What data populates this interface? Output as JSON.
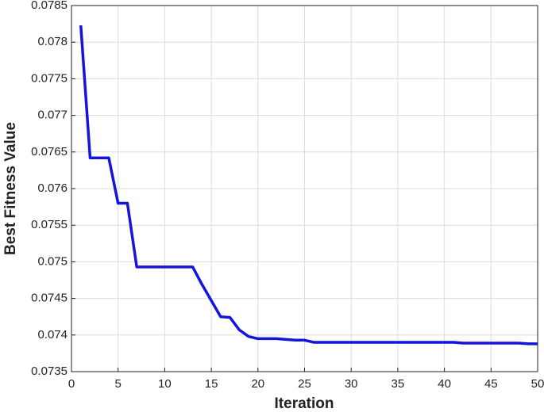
{
  "chart_data": {
    "type": "line",
    "x_label": "Iteration",
    "y_label": "Best Fitness Value",
    "x": [
      1,
      2,
      3,
      4,
      5,
      6,
      7,
      8,
      9,
      10,
      11,
      12,
      13,
      14,
      15,
      16,
      17,
      18,
      19,
      20,
      21,
      22,
      23,
      24,
      25,
      26,
      27,
      28,
      29,
      30,
      31,
      32,
      33,
      34,
      35,
      36,
      37,
      38,
      39,
      40,
      41,
      42,
      43,
      44,
      45,
      46,
      47,
      48,
      49,
      50
    ],
    "series": [
      {
        "name": "Best Fitness",
        "color": "#1414dc",
        "values": [
          0.07823,
          0.07642,
          0.07642,
          0.07642,
          0.0758,
          0.0758,
          0.07493,
          0.07493,
          0.07493,
          0.07493,
          0.07493,
          0.07493,
          0.07493,
          0.07469,
          0.07447,
          0.07425,
          0.07424,
          0.07407,
          0.07398,
          0.07395,
          0.07395,
          0.07395,
          0.07394,
          0.07393,
          0.07393,
          0.0739,
          0.0739,
          0.0739,
          0.0739,
          0.0739,
          0.0739,
          0.0739,
          0.0739,
          0.0739,
          0.0739,
          0.0739,
          0.0739,
          0.0739,
          0.0739,
          0.0739,
          0.0739,
          0.07389,
          0.07389,
          0.07389,
          0.07389,
          0.07389,
          0.07389,
          0.07389,
          0.07388,
          0.07388
        ]
      }
    ],
    "xlim": [
      0,
      50
    ],
    "xticks": [
      0,
      5,
      10,
      15,
      20,
      25,
      30,
      35,
      40,
      45,
      50
    ],
    "ylim": [
      0.0735,
      0.0785
    ],
    "yticks": [
      0.0735,
      0.074,
      0.0745,
      0.075,
      0.0755,
      0.076,
      0.0765,
      0.077,
      0.0775,
      0.078,
      0.0785
    ],
    "grid": true
  }
}
